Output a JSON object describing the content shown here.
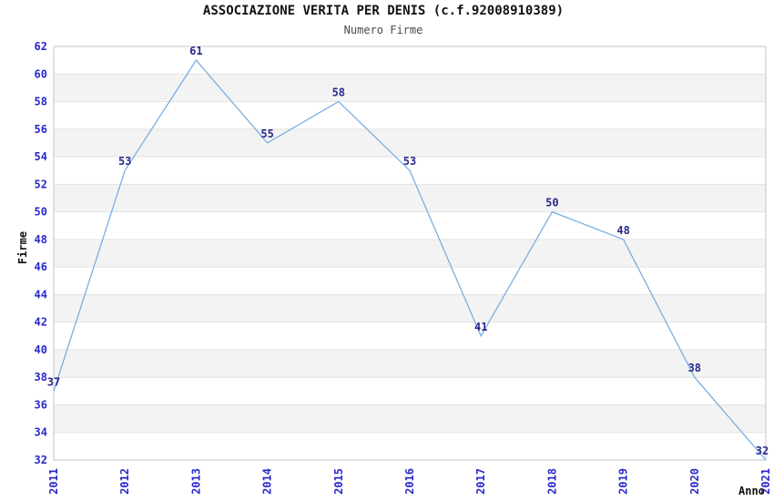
{
  "chart_data": {
    "type": "line",
    "title": "ASSOCIAZIONE VERITA PER DENIS (c.f.92008910389)",
    "subtitle": "Numero Firme",
    "xlabel": "Anno",
    "ylabel": "Firme",
    "x": [
      2011,
      2012,
      2013,
      2014,
      2015,
      2016,
      2017,
      2018,
      2019,
      2020,
      2021
    ],
    "series": [
      {
        "name": "Numero Firme",
        "values": [
          37,
          53,
          61,
          55,
          58,
          53,
          41,
          50,
          48,
          38,
          32
        ]
      }
    ],
    "ylim": [
      32,
      62
    ],
    "ytick_step": 2,
    "data_labels": true,
    "grid": "horizontal-bands-alternating",
    "legend": "none",
    "x_tick_rotation": -90,
    "colors": {
      "line": "#7aafe2",
      "tick_label": "#2929cc",
      "data_label": "#29298c",
      "band_gray": "#f3f3f3",
      "band_white": "#ffffff",
      "grid_line": "#e3e3e3",
      "border": "#c6c6c6",
      "title": "#111111",
      "subtitle": "#4a4a4a",
      "axis_title": "#111111"
    }
  }
}
